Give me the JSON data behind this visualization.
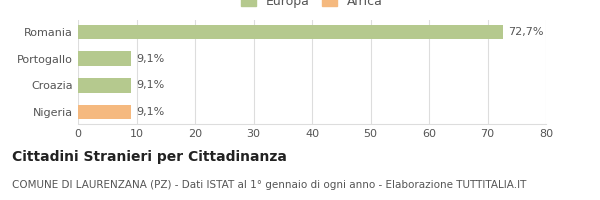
{
  "categories": [
    "Nigeria",
    "Croazia",
    "Portogallo",
    "Romania"
  ],
  "values": [
    9.1,
    9.1,
    9.1,
    72.7
  ],
  "bar_colors": [
    "#f5b97f",
    "#b5c98e",
    "#b5c98e",
    "#b5c98e"
  ],
  "bar_labels": [
    "9,1%",
    "9,1%",
    "9,1%",
    "72,7%"
  ],
  "xlim": [
    0,
    80
  ],
  "xticks": [
    0,
    10,
    20,
    30,
    40,
    50,
    60,
    70,
    80
  ],
  "legend_items": [
    {
      "label": "Europa",
      "color": "#b5c98e"
    },
    {
      "label": "Africa",
      "color": "#f5b97f"
    }
  ],
  "title": "Cittadini Stranieri per Cittadinanza",
  "subtitle": "COMUNE DI LAURENZANA (PZ) - Dati ISTAT al 1° gennaio di ogni anno - Elaborazione TUTTITALIA.IT",
  "background_color": "#ffffff",
  "grid_color": "#dddddd",
  "title_fontsize": 10,
  "subtitle_fontsize": 7.5,
  "label_fontsize": 8,
  "tick_fontsize": 8,
  "legend_fontsize": 9
}
